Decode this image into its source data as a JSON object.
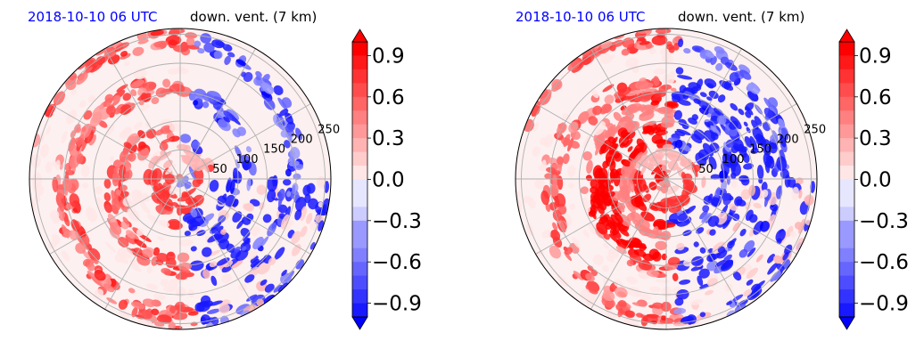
{
  "chart_data": [
    {
      "type": "heatmap",
      "projection": "polar",
      "title_left": "2018-10-10 06 UTC",
      "title_right": "down. vent. (7 km)",
      "radial_ticks": [
        "50",
        "100",
        "150",
        "200",
        "250"
      ],
      "radial_tick_values": [
        50,
        100,
        150,
        200,
        250
      ],
      "rlim": [
        0,
        260
      ],
      "grid": true,
      "colormap": "bwr",
      "colorbar": {
        "ticks": [
          "0.9",
          "0.6",
          "0.3",
          "0.0",
          "−0.3",
          "−0.6",
          "−0.9"
        ],
        "tick_values": [
          0.9,
          0.6,
          0.3,
          0.0,
          -0.3,
          -0.6,
          -0.9
        ],
        "vmin": -1.0,
        "vmax": 1.0,
        "extend": "both"
      }
    },
    {
      "type": "heatmap",
      "projection": "polar",
      "title_left": "2018-10-10 06 UTC",
      "title_right": "down. vent. (7 km)",
      "radial_ticks": [
        "50",
        "100",
        "150",
        "200",
        "250"
      ],
      "radial_tick_values": [
        50,
        100,
        150,
        200,
        250
      ],
      "rlim": [
        0,
        260
      ],
      "grid": true,
      "colormap": "bwr",
      "colorbar": {
        "ticks": [
          "0.9",
          "0.6",
          "0.3",
          "0.0",
          "−0.3",
          "−0.6",
          "−0.9"
        ],
        "tick_values": [
          0.9,
          0.6,
          0.3,
          0.0,
          -0.3,
          -0.6,
          -0.9
        ],
        "vmin": -1.0,
        "vmax": 1.0,
        "extend": "both"
      }
    }
  ],
  "colors": {
    "title_left": "#0000ff",
    "title_right": "#000000",
    "positive": "#ff0000",
    "negative": "#0000ff",
    "neutral": "#fdf0f0",
    "grid": "#b0b0b0"
  }
}
